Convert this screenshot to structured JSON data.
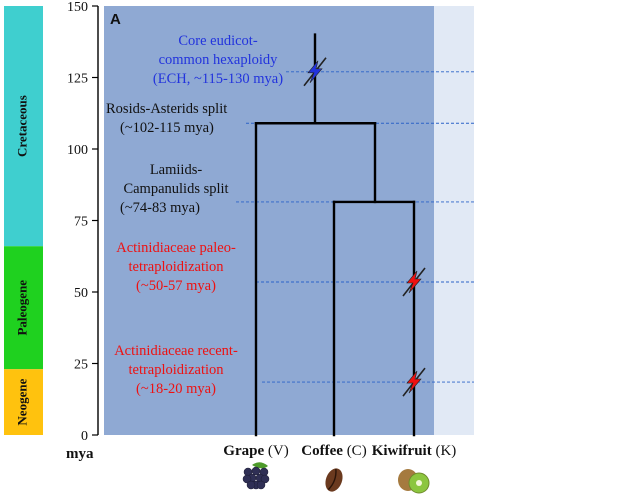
{
  "panel_label": "A",
  "axis": {
    "unit_label": "mya",
    "range": [
      0,
      150
    ],
    "ticks": [
      "0",
      "25",
      "50",
      "75",
      "100",
      "125",
      "150"
    ]
  },
  "periods": [
    {
      "name": "Cretaceous",
      "color": "#3fcfcf",
      "range": [
        66,
        150
      ]
    },
    {
      "name": "Paleogene",
      "color": "#1fd11f",
      "range": [
        23,
        66
      ]
    },
    {
      "name": "Neogene",
      "color": "#ffc20e",
      "range": [
        0,
        23
      ]
    }
  ],
  "colors": {
    "plot_background": "#8fa9d3",
    "outer_background": "#e1e9f5",
    "tree": "#000000",
    "dashed_line": "#2b63c8",
    "ech_text": "#2233dd",
    "actinidiaceae_text": "#ee1111",
    "default_text": "#111111"
  },
  "events": [
    {
      "name": "ech",
      "time": 127,
      "lines": [
        "Core eudicot-",
        "common hexaploidy",
        "(ECH, ~115-130 mya)"
      ],
      "color": "#2233dd",
      "icon": "lightning-bolt-blue-icon"
    },
    {
      "name": "rosids-asterids",
      "time": 109,
      "lines": [
        "Rosids-Asterids split",
        "(~102-115 mya)"
      ],
      "color": "#111111"
    },
    {
      "name": "lamiids-campanulids",
      "time": 81.5,
      "lines": [
        "Lamiids-",
        "Campanulids split",
        "(~74-83 mya)"
      ],
      "color": "#111111"
    },
    {
      "name": "paleo-tetraploidization",
      "time": 53.5,
      "lines": [
        "Actinidiaceae paleo-",
        "tetraploidization",
        "(~50-57 mya)"
      ],
      "color": "#ee1111",
      "icon": "lightning-bolt-red-icon"
    },
    {
      "name": "recent-tetraploidization",
      "time": 18.5,
      "lines": [
        "Actinidiaceae recent-",
        "tetraploidization",
        "(~18-20 mya)"
      ],
      "color": "#ee1111",
      "icon": "lightning-bolt-red-icon"
    }
  ],
  "taxa": [
    {
      "name": "Grape",
      "abbr": "(V)",
      "icon": "grape-icon"
    },
    {
      "name": "Coffee",
      "abbr": "(C)",
      "icon": "coffee-bean-icon"
    },
    {
      "name": "Kiwifruit",
      "abbr": "(K)",
      "icon": "kiwifruit-icon"
    }
  ],
  "tree": {
    "root_time": 140,
    "rosids_asterids_split": 109,
    "lamiids_campanulids_split": 81.5
  }
}
